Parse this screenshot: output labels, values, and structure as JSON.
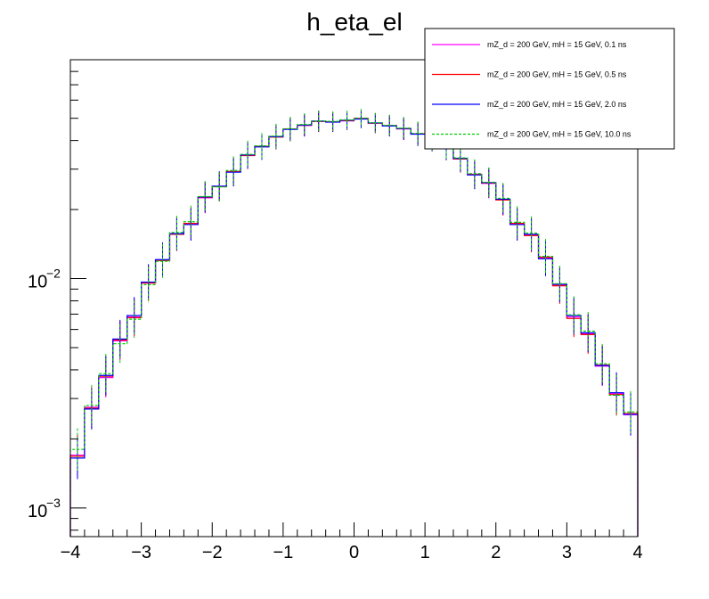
{
  "chart_data": {
    "type": "line",
    "title": "h_eta_el",
    "xlabel": "",
    "ylabel": "",
    "xlim": [
      -4,
      4
    ],
    "ylim": [
      0.00075,
      0.09
    ],
    "y_scale": "log",
    "x_ticks": [
      -4,
      -3,
      -2,
      -1,
      0,
      1,
      2,
      3,
      4
    ],
    "x_tick_labels": [
      "−4",
      "−3",
      "−2",
      "−1",
      "0",
      "1",
      "2",
      "3",
      "4"
    ],
    "y_ticks": [
      0.001,
      0.01
    ],
    "y_tick_labels": [
      {
        "base": "10",
        "exp": "−3"
      },
      {
        "base": "10",
        "exp": "−2"
      }
    ],
    "grid": false,
    "legend_position": "top-right",
    "bin_edges": [
      -4.0,
      -3.8,
      -3.6,
      -3.4,
      -3.2,
      -3.0,
      -2.8,
      -2.6,
      -2.4,
      -2.2,
      -2.0,
      -1.8,
      -1.6,
      -1.4,
      -1.2,
      -1.0,
      -0.8,
      -0.6,
      -0.4,
      -0.2,
      0.0,
      0.2,
      0.4,
      0.6,
      0.8,
      1.0,
      1.2,
      1.4,
      1.6,
      1.8,
      2.0,
      2.2,
      2.4,
      2.6,
      2.8,
      3.0,
      3.2,
      3.4,
      3.6,
      3.8,
      4.0
    ],
    "series": [
      {
        "name": "mZ_d = 200 GeV, mH = 15 GeV, 0.1 ns",
        "color": "#ff00ff",
        "dash": false,
        "values": [
          0.0017,
          0.00275,
          0.0037,
          0.00535,
          0.0068,
          0.0096,
          0.012,
          0.0157,
          0.0173,
          0.0225,
          0.0252,
          0.0292,
          0.0345,
          0.0376,
          0.0415,
          0.0448,
          0.0465,
          0.0485,
          0.0482,
          0.0487,
          0.0498,
          0.0475,
          0.0465,
          0.0449,
          0.0428,
          0.0407,
          0.0374,
          0.0333,
          0.0285,
          0.026,
          0.0221,
          0.0173,
          0.0155,
          0.0123,
          0.00935,
          0.0068,
          0.00575,
          0.00415,
          0.00315,
          0.00255
        ]
      },
      {
        "name": "mZ_d = 200 GeV, mH = 15 GeV, 0.5 ns",
        "color": "#ff0000",
        "dash": false,
        "values": [
          0.00168,
          0.00272,
          0.00375,
          0.0054,
          0.00675,
          0.00955,
          0.012,
          0.0156,
          0.0174,
          0.0226,
          0.0252,
          0.0293,
          0.0344,
          0.0377,
          0.0414,
          0.0449,
          0.0466,
          0.0484,
          0.0483,
          0.0488,
          0.0499,
          0.0476,
          0.0464,
          0.045,
          0.0427,
          0.0408,
          0.0373,
          0.0332,
          0.0284,
          0.0261,
          0.022,
          0.0174,
          0.0154,
          0.0124,
          0.0093,
          0.0067,
          0.0057,
          0.0042,
          0.00312,
          0.00258
        ]
      },
      {
        "name": "mZ_d = 200 GeV, mH = 15 GeV, 2.0 ns",
        "color": "#0000ff",
        "dash": false,
        "values": [
          0.00165,
          0.0027,
          0.00378,
          0.00545,
          0.0069,
          0.00965,
          0.0121,
          0.0157,
          0.0172,
          0.0227,
          0.0253,
          0.0291,
          0.0346,
          0.0375,
          0.0416,
          0.0447,
          0.0467,
          0.0486,
          0.0481,
          0.049,
          0.0496,
          0.0477,
          0.0463,
          0.0451,
          0.0426,
          0.0406,
          0.0375,
          0.0334,
          0.0283,
          0.0262,
          0.0222,
          0.0172,
          0.0156,
          0.0122,
          0.00945,
          0.0069,
          0.0058,
          0.00418,
          0.00318,
          0.00256
        ]
      },
      {
        "name": "mZ_d = 200 GeV, mH = 15 GeV, 10.0 ns",
        "color": "#00cc00",
        "dash": true,
        "values": [
          0.0018,
          0.0028,
          0.00385,
          0.0052,
          0.00665,
          0.0094,
          0.0119,
          0.0159,
          0.0177,
          0.0228,
          0.0251,
          0.0296,
          0.0348,
          0.0379,
          0.0418,
          0.045,
          0.047,
          0.0486,
          0.0485,
          0.0492,
          0.0501,
          0.0478,
          0.0466,
          0.0453,
          0.043,
          0.041,
          0.0378,
          0.0336,
          0.0287,
          0.0263,
          0.0224,
          0.0176,
          0.0158,
          0.0125,
          0.0095,
          0.00695,
          0.0059,
          0.00425,
          0.0031,
          0.00262
        ]
      }
    ]
  }
}
